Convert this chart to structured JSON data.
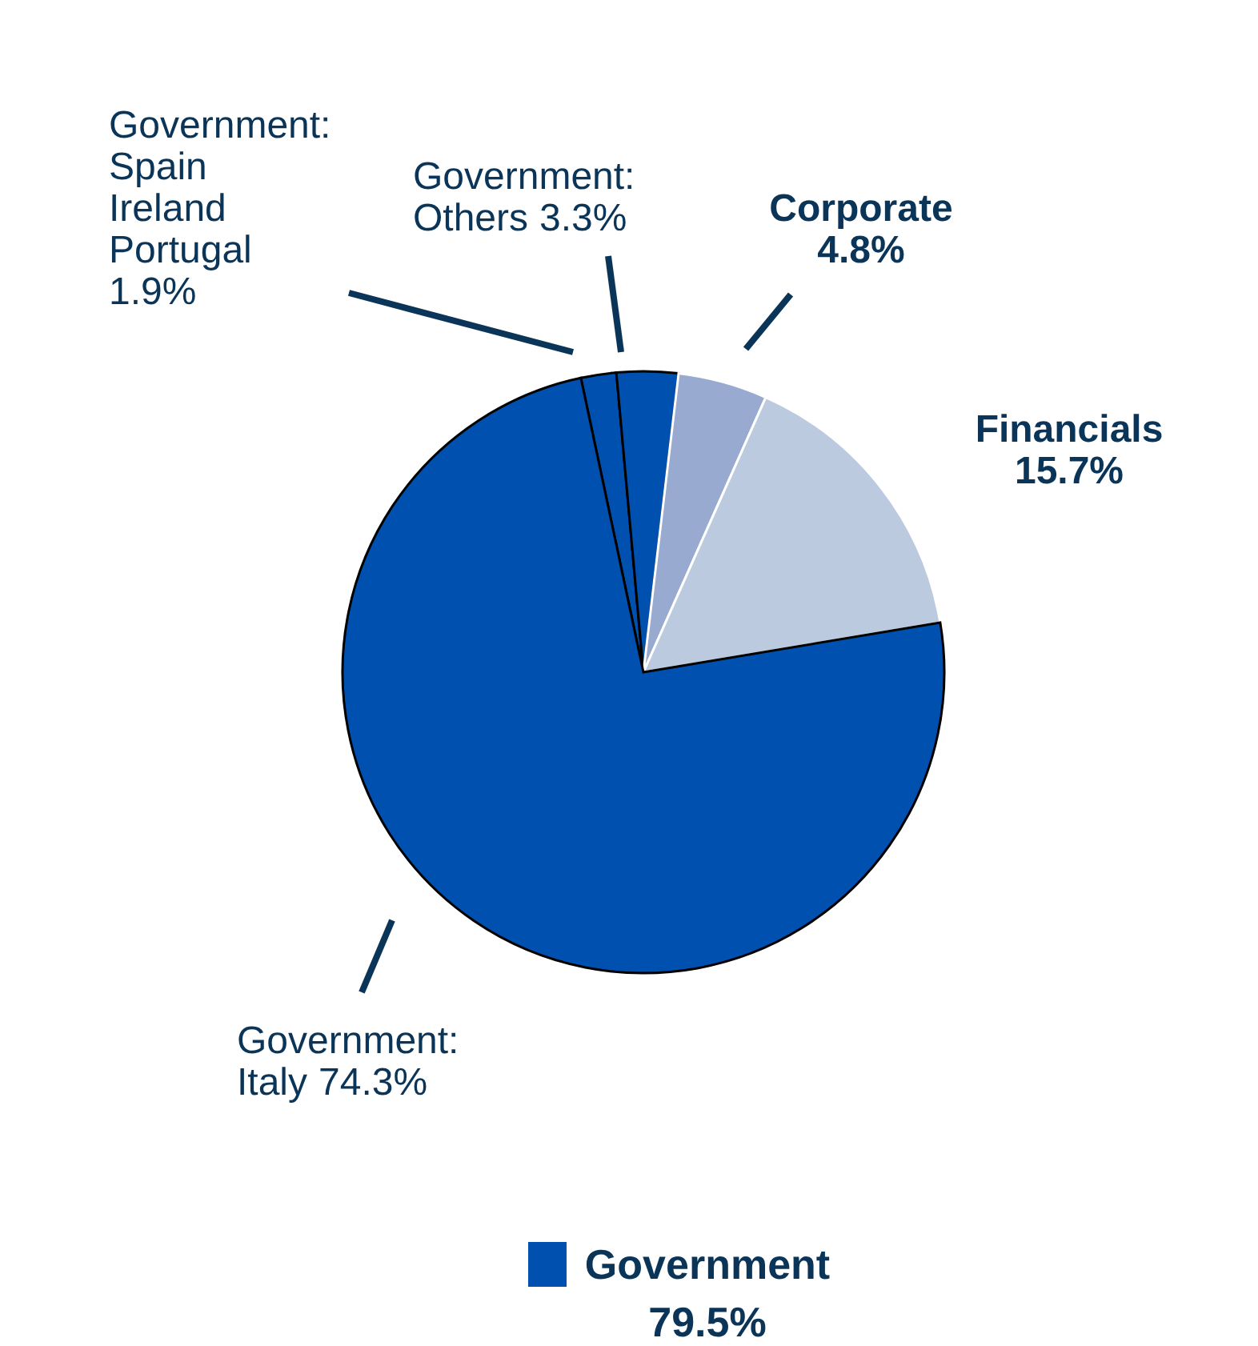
{
  "chart_data": {
    "type": "pie",
    "categories": [
      "Government: Spain Ireland Portugal",
      "Government: Others",
      "Corporate",
      "Financials",
      "Government: Italy"
    ],
    "values": [
      1.9,
      3.3,
      4.8,
      15.7,
      74.3
    ],
    "colors": [
      "#0050b0",
      "#0050b0",
      "#98aad0",
      "#bccae0",
      "#0050b0"
    ],
    "value_labels": [
      "1.9%",
      "3.3%",
      "4.8%",
      "15.7%",
      "74.3%"
    ],
    "annotations": [
      "Government 79.5%"
    ]
  }
}
